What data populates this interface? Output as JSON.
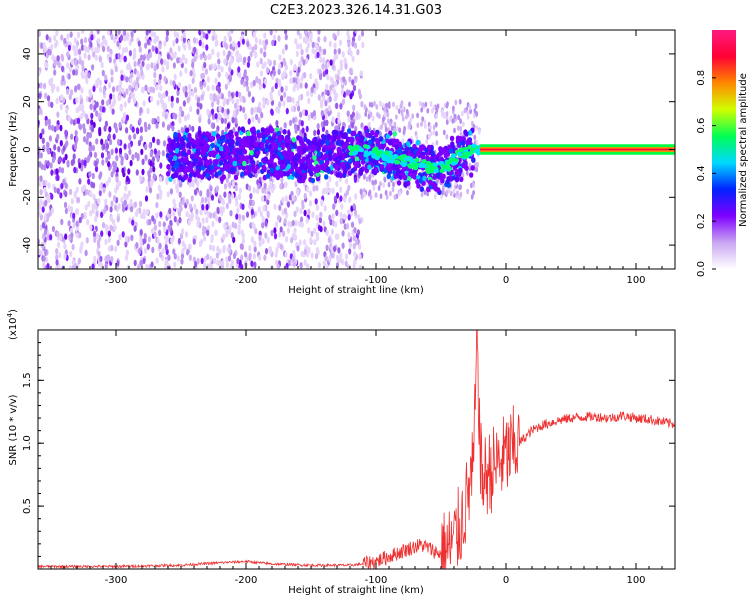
{
  "chart_data": [
    {
      "type": "heatmap",
      "title": "C2E3.2023.326.14.31.G03",
      "xlabel": "Height of straight line (km)",
      "ylabel": "Frequency (Hz)",
      "xlim": [
        -360,
        130
      ],
      "ylim": [
        -50,
        50
      ],
      "x_ticks": [
        -300,
        -200,
        -100,
        0,
        100
      ],
      "y_ticks": [
        -40,
        -20,
        0,
        20,
        40
      ],
      "colorbar": {
        "label": "Normalized spectral amplitude",
        "range": [
          0,
          1
        ],
        "ticks": [
          "0.0",
          "0.2",
          "0.4",
          "0.6",
          "0.8"
        ],
        "colors": [
          "#ffffff",
          "#c9a6f2",
          "#7f00ff",
          "#0022ff",
          "#00d8ff",
          "#00ff55",
          "#d0ff00",
          "#ff8800",
          "#ff0033",
          "#ff1a80"
        ]
      },
      "trace": {
        "x": [
          -250,
          -220,
          -190,
          -160,
          -130,
          -110,
          -90,
          -70,
          -55,
          -45,
          -38,
          -30,
          -22,
          -12,
          -3,
          0,
          10,
          40,
          80,
          130
        ],
        "y": [
          -3,
          -2,
          -1,
          -3,
          -2,
          0,
          -3,
          -6,
          -8,
          -7,
          -3,
          -1,
          0,
          0,
          1,
          0,
          0,
          0,
          0,
          0
        ]
      }
    },
    {
      "type": "line",
      "xlabel": "Height of straight line (km)",
      "ylabel": "SNR (10 * v/v)",
      "y_scale_label": "(x10",
      "y_scale_exp": "4",
      "y_scale_close": ")",
      "xlim": [
        -360,
        130
      ],
      "ylim": [
        0,
        1.9
      ],
      "x_ticks": [
        -300,
        -200,
        -100,
        0,
        100
      ],
      "y_ticks": [
        "0.5",
        "1.0",
        "1.5"
      ],
      "series": [
        {
          "color": "#ee3030",
          "x": [
            -360,
            -300,
            -250,
            -220,
            -200,
            -180,
            -150,
            -120,
            -110,
            -100,
            -95,
            -90,
            -85,
            -80,
            -75,
            -70,
            -65,
            -60,
            -55,
            -50,
            -45,
            -40,
            -35,
            -30,
            -25,
            -22,
            -20,
            -18,
            -15,
            -10,
            -5,
            0,
            5,
            10,
            15,
            20,
            25,
            30,
            40,
            50,
            60,
            70,
            80,
            90,
            100,
            110,
            120,
            130
          ],
          "y": [
            0.02,
            0.02,
            0.03,
            0.05,
            0.06,
            0.04,
            0.03,
            0.03,
            0.04,
            0.06,
            0.08,
            0.1,
            0.12,
            0.14,
            0.16,
            0.18,
            0.19,
            0.17,
            0.14,
            0.12,
            0.15,
            0.22,
            0.35,
            0.55,
            0.8,
            1.9,
            0.9,
            0.7,
            0.75,
            0.8,
            0.85,
            0.9,
            0.95,
            1.0,
            1.05,
            1.1,
            1.13,
            1.15,
            1.18,
            1.2,
            1.21,
            1.21,
            1.2,
            1.22,
            1.2,
            1.19,
            1.17,
            1.15
          ]
        }
      ]
    }
  ]
}
